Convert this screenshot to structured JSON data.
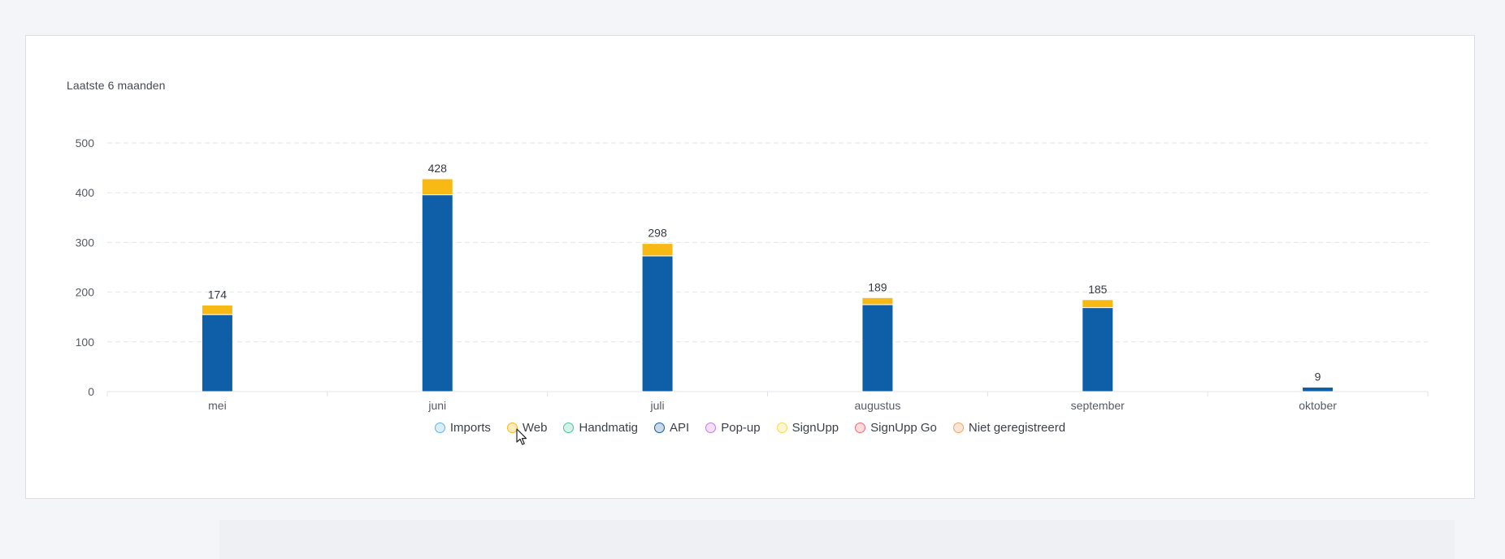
{
  "card": {
    "title": "Laatste 6 maanden"
  },
  "chart_data": {
    "type": "bar",
    "stacked": true,
    "title": "Laatste 6 maanden",
    "categories": [
      "mei",
      "juni",
      "juli",
      "augustus",
      "september",
      "oktober"
    ],
    "ylim": [
      0,
      500
    ],
    "yticks": [
      0,
      100,
      200,
      300,
      400,
      500
    ],
    "grid": true,
    "legend_position": "bottom",
    "series": [
      {
        "name": "Imports",
        "color": "#5ab4e6",
        "values": [
          0,
          0,
          0,
          0,
          0,
          0
        ]
      },
      {
        "name": "Web",
        "color": "#f8b915",
        "values": [
          19,
          32,
          25,
          14,
          16,
          0
        ]
      },
      {
        "name": "Handmatig",
        "color": "#3ec99a",
        "values": [
          0,
          0,
          0,
          0,
          0,
          0
        ]
      },
      {
        "name": "API",
        "color": "#0f5fa8",
        "values": [
          155,
          396,
          273,
          175,
          169,
          9
        ]
      },
      {
        "name": "Pop-up",
        "color": "#c27be0",
        "values": [
          0,
          0,
          0,
          0,
          0,
          0
        ]
      },
      {
        "name": "SignUpp",
        "color": "#f7d94c",
        "values": [
          0,
          0,
          0,
          0,
          0,
          0
        ]
      },
      {
        "name": "SignUpp Go",
        "color": "#ee6b73",
        "values": [
          0,
          0,
          0,
          0,
          0,
          0
        ]
      },
      {
        "name": "Niet geregistreerd",
        "color": "#f2a35e",
        "values": [
          0,
          0,
          0,
          0,
          0,
          0
        ]
      }
    ],
    "totals": [
      174,
      428,
      298,
      189,
      185,
      9
    ]
  },
  "legend": [
    {
      "label": "Imports",
      "fill": "#d8eefa",
      "stroke": "#5ab4e6"
    },
    {
      "label": "Web",
      "fill": "#fdecc0",
      "stroke": "#f8b915"
    },
    {
      "label": "Handmatig",
      "fill": "#d3f3e6",
      "stroke": "#3ec99a"
    },
    {
      "label": "API",
      "fill": "#c9d9ea",
      "stroke": "#0f5fa8"
    },
    {
      "label": "Pop-up",
      "fill": "#f2e0fa",
      "stroke": "#c27be0"
    },
    {
      "label": "SignUpp",
      "fill": "#fdf6d2",
      "stroke": "#f7d94c"
    },
    {
      "label": "SignUpp Go",
      "fill": "#fbdcde",
      "stroke": "#ee6b73"
    },
    {
      "label": "Niet geregistreerd",
      "fill": "#fce6d2",
      "stroke": "#f2a35e"
    }
  ]
}
